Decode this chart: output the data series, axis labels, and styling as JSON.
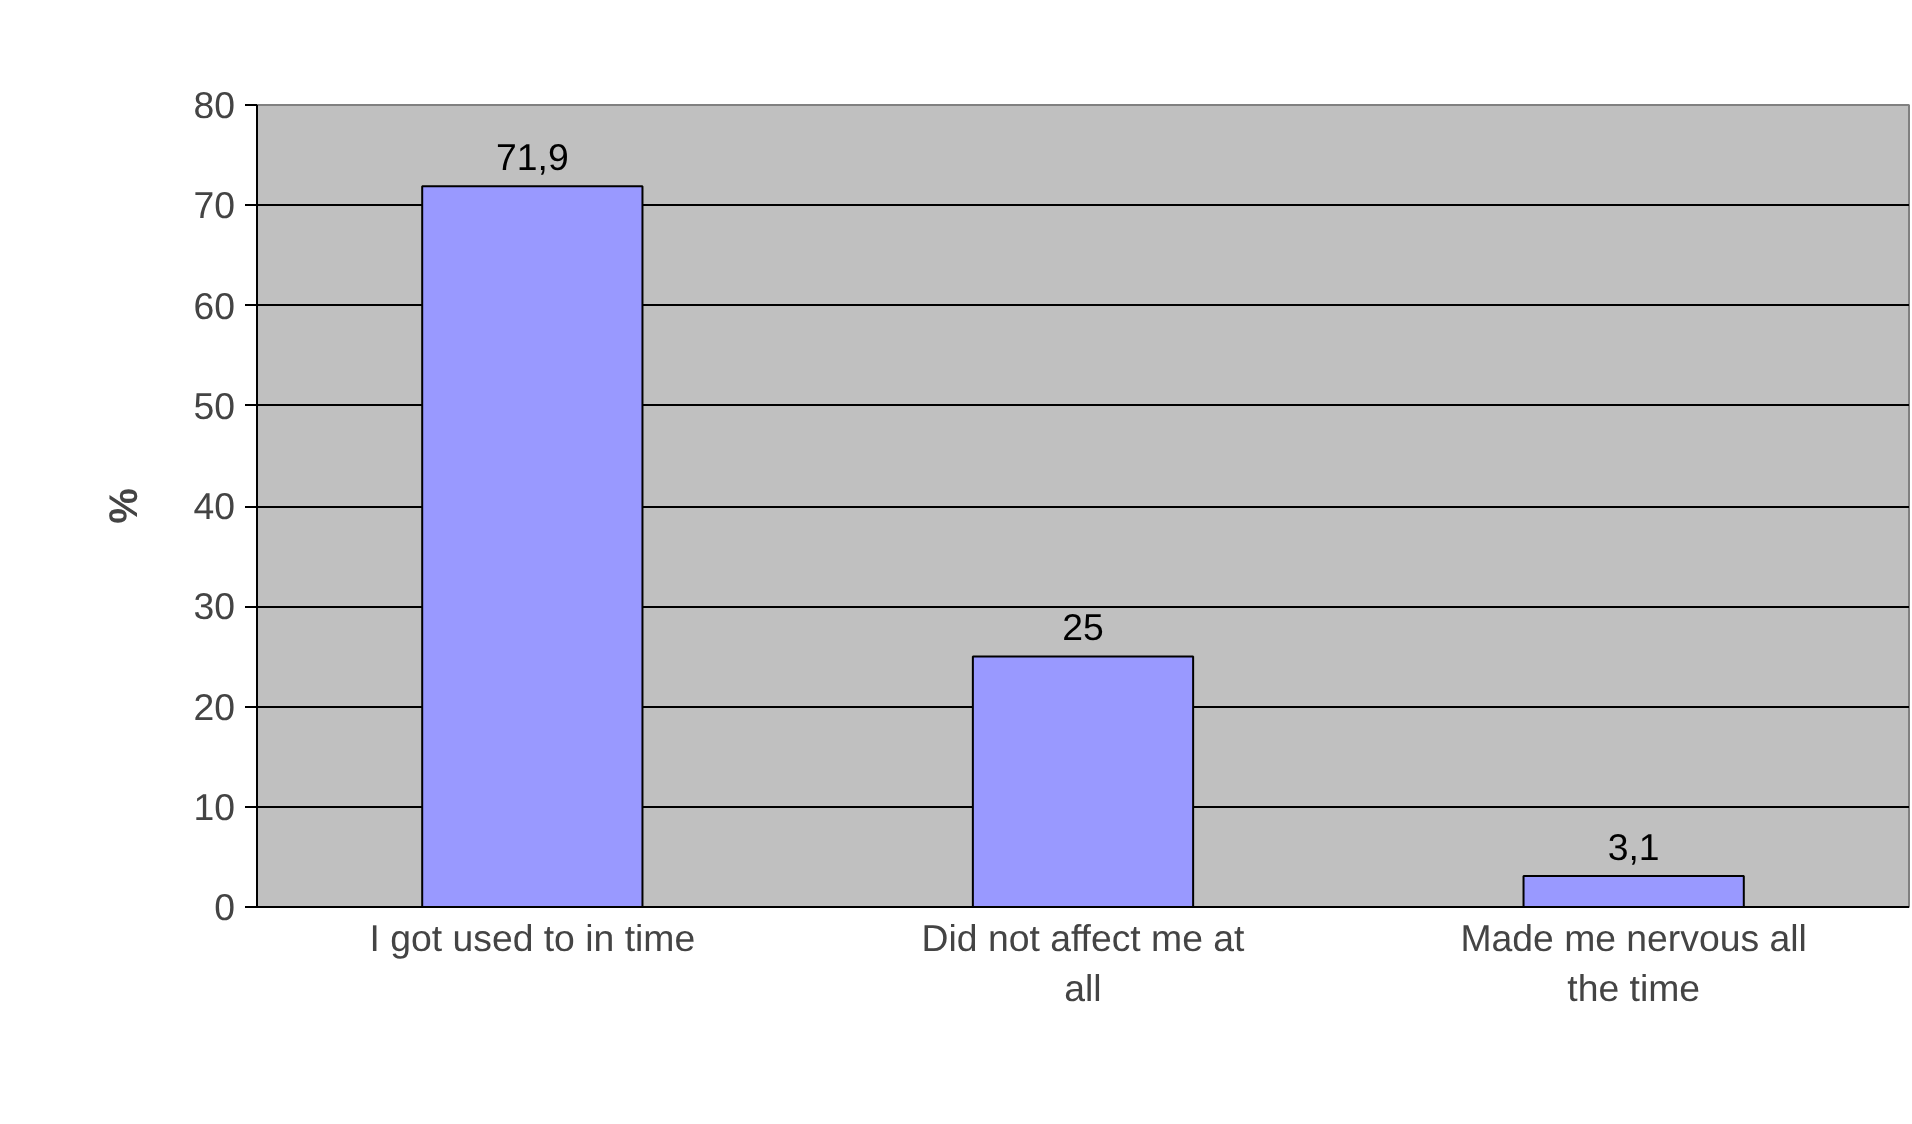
{
  "chart_data": {
    "type": "bar",
    "ylabel": "%",
    "categories": [
      "I got used to in time",
      "Did not affect me at all",
      "Made me nervous all the time"
    ],
    "values": [
      71.9,
      25,
      3.1
    ],
    "color": "#9999ff",
    "value_labels": [
      "71,9",
      "25",
      "3,1"
    ],
    "ylim": [
      0,
      80
    ],
    "yticks": [
      0,
      10,
      20,
      30,
      40,
      50,
      60,
      70,
      80
    ],
    "grid": "y"
  }
}
